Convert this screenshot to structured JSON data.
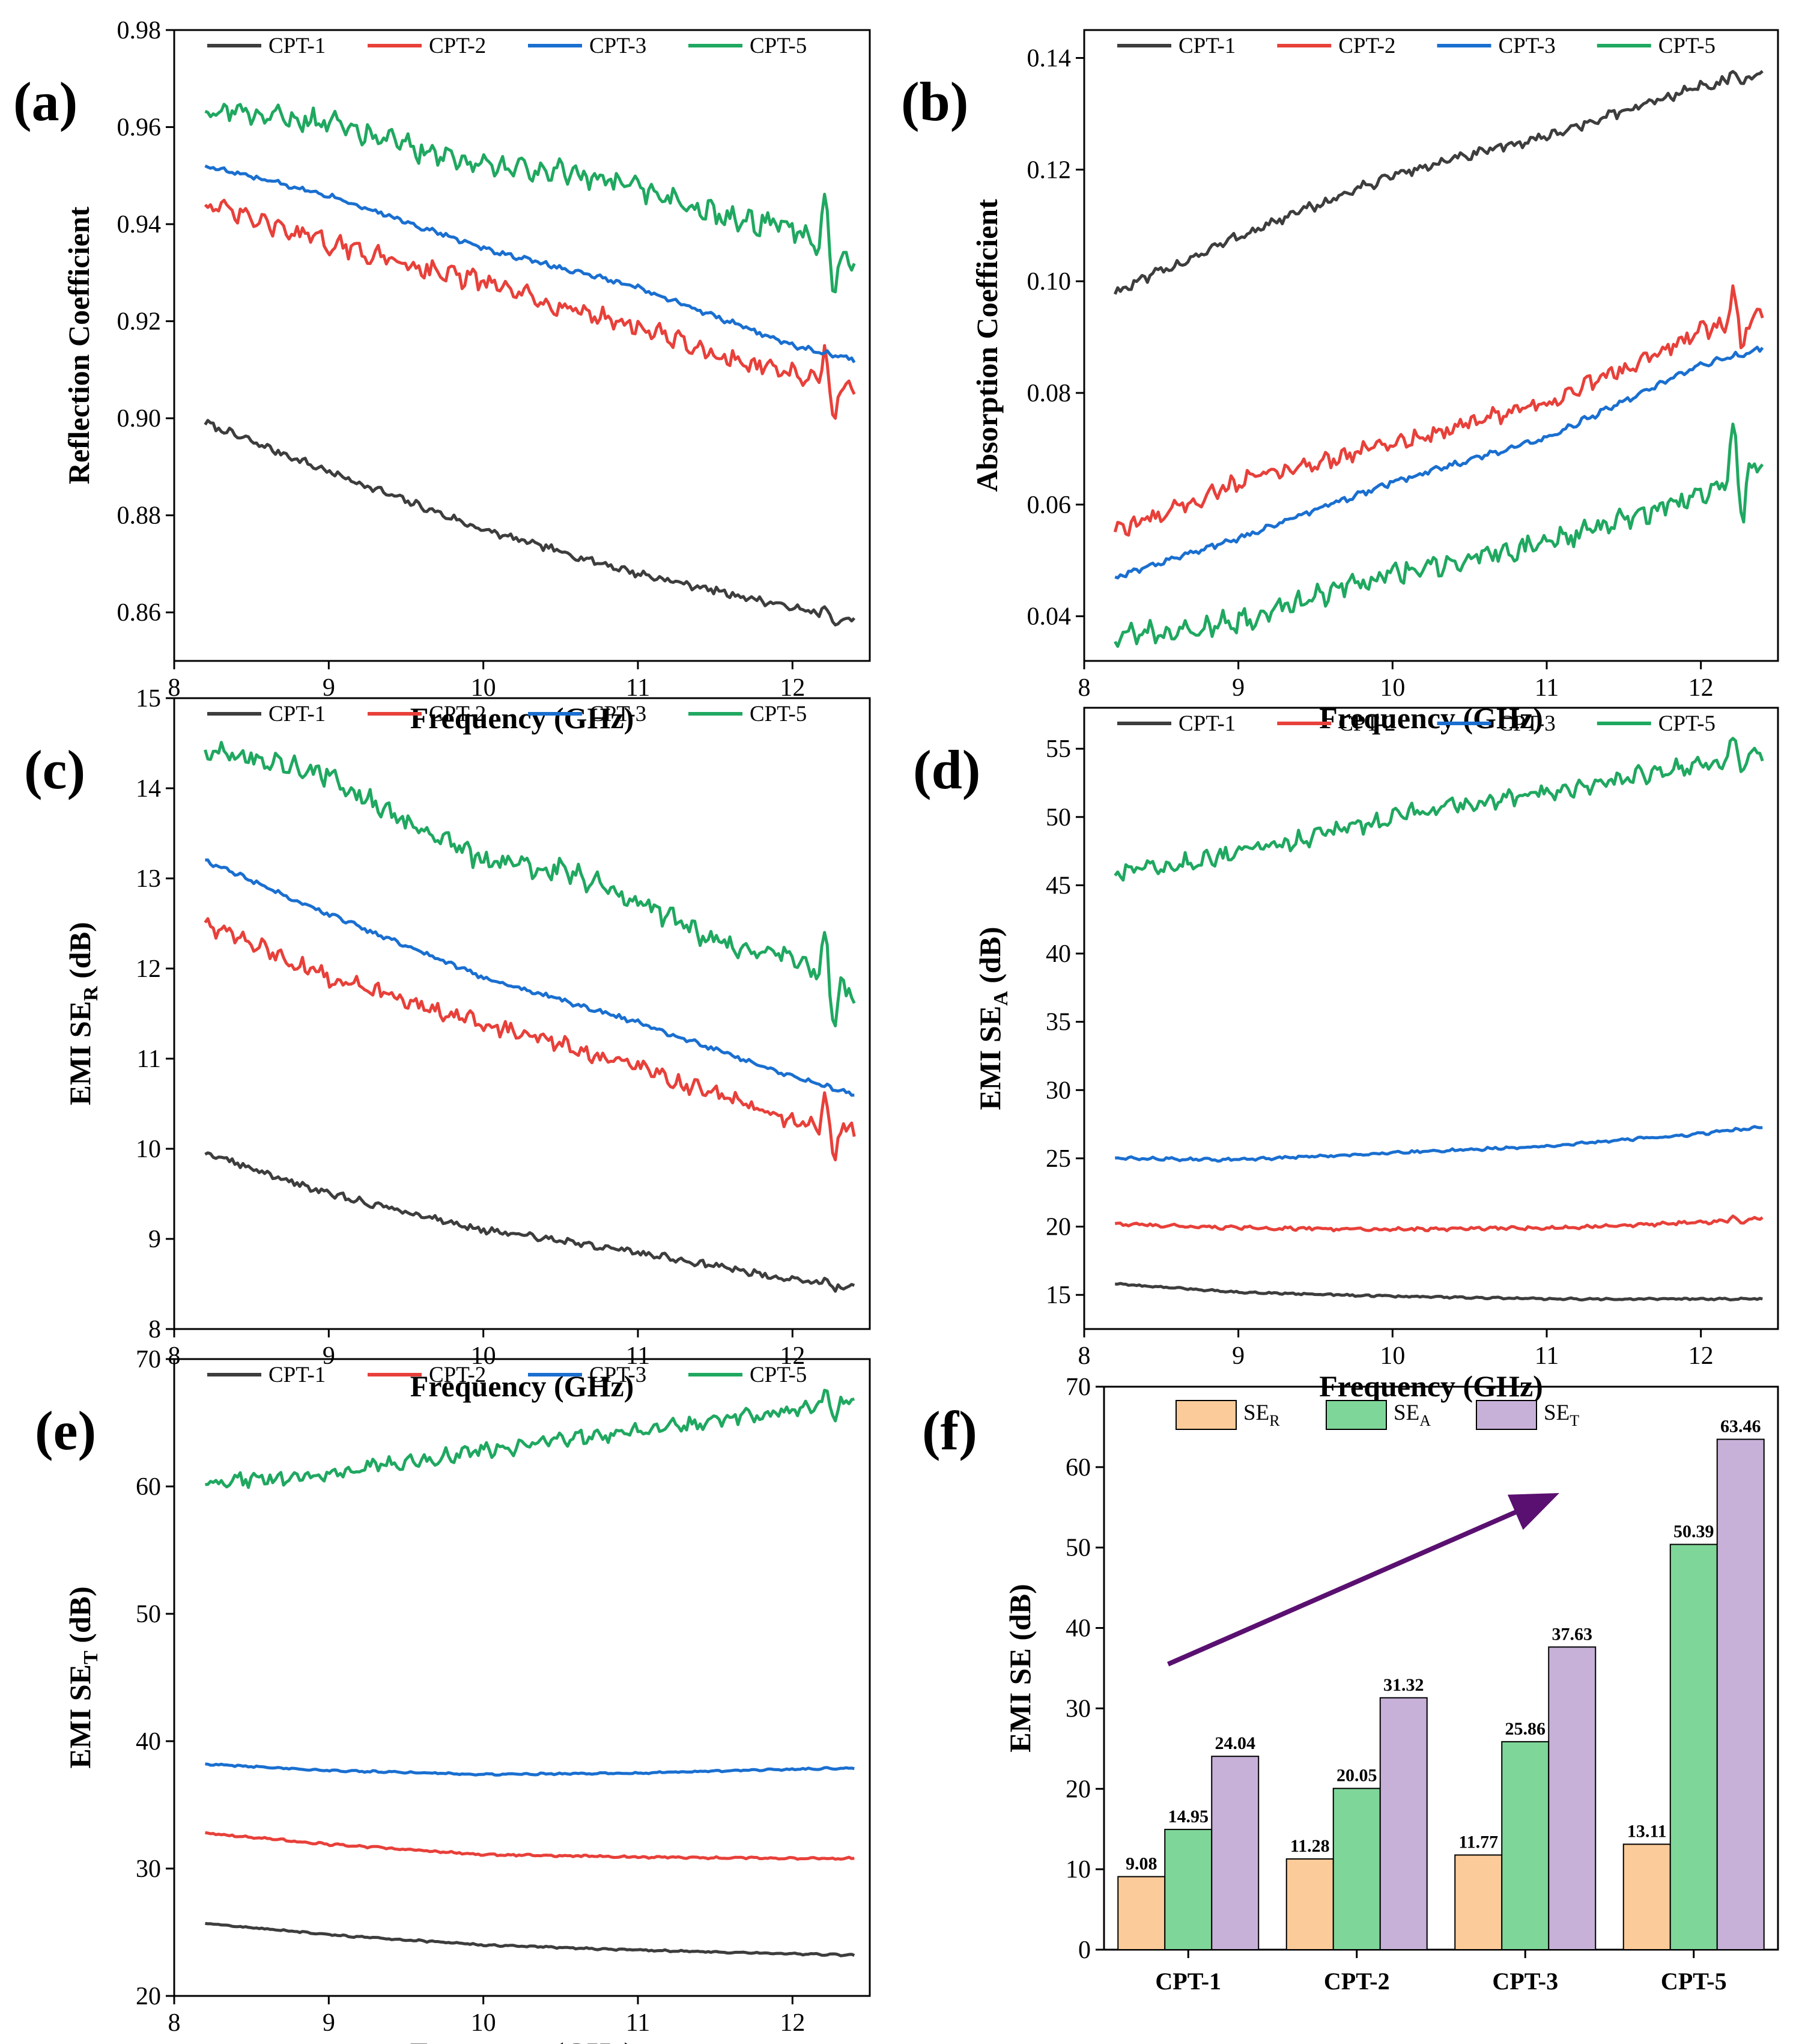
{
  "chart_data": [
    {
      "type": "line",
      "panel": "(a)",
      "xlabel": "Frequency (GHz)",
      "ylabel": "Reflection Coefficient",
      "xlim": [
        8,
        12.5
      ],
      "ylim": [
        0.85,
        0.98
      ],
      "xticks": [
        8,
        9,
        10,
        11,
        12
      ],
      "yticks": [
        0.86,
        0.88,
        0.9,
        0.92,
        0.94,
        0.96,
        0.98
      ],
      "tick_decimals": 2,
      "legend_position": "top",
      "series": [
        {
          "name": "CPT-1",
          "color": "#3d3d3d",
          "noise": 0.0006,
          "spike": 0.002,
          "x": [
            8.2,
            9.0,
            10.0,
            11.0,
            12.0,
            12.4
          ],
          "y": [
            0.899,
            0.889,
            0.877,
            0.868,
            0.861,
            0.858
          ]
        },
        {
          "name": "CPT-2",
          "color": "#e8403a",
          "noise": 0.0015,
          "spike": 0.007,
          "x": [
            8.2,
            9.0,
            10.0,
            10.5,
            11.0,
            11.5,
            12.0,
            12.4
          ],
          "y": [
            0.944,
            0.936,
            0.928,
            0.923,
            0.919,
            0.913,
            0.909,
            0.905
          ]
        },
        {
          "name": "CPT-3",
          "color": "#1a6fd0",
          "noise": 0.0004,
          "spike": 0.0,
          "x": [
            8.2,
            9.0,
            10.0,
            11.0,
            12.0,
            12.4
          ],
          "y": [
            0.952,
            0.946,
            0.935,
            0.927,
            0.915,
            0.912
          ]
        },
        {
          "name": "CPT-5",
          "color": "#1fa860",
          "noise": 0.0018,
          "spike": 0.009,
          "x": [
            8.2,
            9.0,
            9.5,
            10.0,
            10.5,
            11.0,
            11.5,
            12.0,
            12.4
          ],
          "y": [
            0.964,
            0.961,
            0.956,
            0.952,
            0.951,
            0.947,
            0.942,
            0.939,
            0.932
          ]
        }
      ]
    },
    {
      "type": "line",
      "panel": "(b)",
      "xlabel": "Frequency (GHz)",
      "ylabel": "Absorption Coefficient",
      "xlim": [
        8,
        12.5
      ],
      "ylim": [
        0.032,
        0.145
      ],
      "xticks": [
        8,
        9,
        10,
        11,
        12
      ],
      "yticks": [
        0.04,
        0.06,
        0.08,
        0.1,
        0.12,
        0.14
      ],
      "tick_decimals": 2,
      "legend_position": "top",
      "series": [
        {
          "name": "CPT-1",
          "color": "#3d3d3d",
          "noise": 0.0007,
          "spike": 0.002,
          "x": [
            8.2,
            9.0,
            10.0,
            11.0,
            12.0,
            12.4
          ],
          "y": [
            0.098,
            0.108,
            0.119,
            0.126,
            0.135,
            0.137
          ]
        },
        {
          "name": "CPT-2",
          "color": "#e8403a",
          "noise": 0.0012,
          "spike": 0.006,
          "x": [
            8.2,
            9.0,
            10.0,
            11.0,
            12.0,
            12.4
          ],
          "y": [
            0.055,
            0.064,
            0.071,
            0.078,
            0.091,
            0.094
          ]
        },
        {
          "name": "CPT-3",
          "color": "#1a6fd0",
          "noise": 0.0004,
          "spike": 0.0,
          "x": [
            8.2,
            9.0,
            10.0,
            11.0,
            12.0,
            12.4
          ],
          "y": [
            0.047,
            0.054,
            0.064,
            0.072,
            0.085,
            0.088
          ]
        },
        {
          "name": "CPT-5",
          "color": "#1fa860",
          "noise": 0.0016,
          "spike": 0.008,
          "x": [
            8.2,
            9.0,
            10.0,
            11.0,
            12.0,
            12.4
          ],
          "y": [
            0.036,
            0.039,
            0.048,
            0.053,
            0.062,
            0.068
          ]
        }
      ]
    },
    {
      "type": "line",
      "panel": "(c)",
      "xlabel": "Frequency (GHz)",
      "ylabel": "EMI SE",
      "ylabel_sub": "R",
      "ylabel_suffix": " (dB)",
      "xlim": [
        8,
        12.5
      ],
      "ylim": [
        8,
        15
      ],
      "xticks": [
        8,
        9,
        10,
        11,
        12
      ],
      "yticks": [
        8,
        9,
        10,
        11,
        12,
        13,
        14,
        15
      ],
      "tick_decimals": 0,
      "legend_position": "top",
      "series": [
        {
          "name": "CPT-1",
          "color": "#3d3d3d",
          "noise": 0.03,
          "spike": 0.08,
          "x": [
            8.2,
            9.0,
            10.0,
            11.0,
            12.0,
            12.4
          ],
          "y": [
            9.95,
            9.5,
            9.1,
            8.85,
            8.55,
            8.47
          ]
        },
        {
          "name": "CPT-2",
          "color": "#e8403a",
          "noise": 0.07,
          "spike": 0.35,
          "x": [
            8.2,
            9.0,
            10.0,
            11.0,
            12.0,
            12.4
          ],
          "y": [
            12.5,
            11.9,
            11.4,
            10.9,
            10.3,
            10.2
          ]
        },
        {
          "name": "CPT-3",
          "color": "#1a6fd0",
          "noise": 0.02,
          "spike": 0.0,
          "x": [
            8.2,
            9.0,
            10.0,
            11.0,
            12.0,
            12.4
          ],
          "y": [
            13.2,
            12.6,
            11.9,
            11.4,
            10.8,
            10.6
          ]
        },
        {
          "name": "CPT-5",
          "color": "#1fa860",
          "noise": 0.09,
          "spike": 0.45,
          "x": [
            8.2,
            9.0,
            9.5,
            10.0,
            10.5,
            11.0,
            11.5,
            12.0,
            12.4
          ],
          "y": [
            14.45,
            14.15,
            13.6,
            13.2,
            13.1,
            12.75,
            12.3,
            12.1,
            11.7
          ]
        }
      ]
    },
    {
      "type": "line",
      "panel": "(d)",
      "xlabel": "Frequency (GHz)",
      "ylabel": "EMI SE",
      "ylabel_sub": "A",
      "ylabel_suffix": " (dB)",
      "xlim": [
        8,
        12.5
      ],
      "ylim": [
        12.5,
        58
      ],
      "xticks": [
        8,
        9,
        10,
        11,
        12
      ],
      "yticks": [
        15,
        20,
        25,
        30,
        35,
        40,
        45,
        50,
        55
      ],
      "tick_decimals": 0,
      "legend_position": "top",
      "series": [
        {
          "name": "CPT-1",
          "color": "#3d3d3d",
          "noise": 0.05,
          "spike": 0.0,
          "x": [
            8.2,
            9.0,
            10.0,
            11.0,
            12.0,
            12.4
          ],
          "y": [
            15.8,
            15.2,
            14.9,
            14.7,
            14.7,
            14.7
          ]
        },
        {
          "name": "CPT-2",
          "color": "#e8403a",
          "noise": 0.1,
          "spike": 0.3,
          "x": [
            8.2,
            9.0,
            10.0,
            11.0,
            12.0,
            12.4
          ],
          "y": [
            20.2,
            19.9,
            19.8,
            19.9,
            20.3,
            20.6
          ]
        },
        {
          "name": "CPT-3",
          "color": "#1a6fd0",
          "noise": 0.08,
          "spike": 0.0,
          "x": [
            8.2,
            9.0,
            10.0,
            11.0,
            12.0,
            12.4
          ],
          "y": [
            25.0,
            24.9,
            25.4,
            25.9,
            26.8,
            27.3
          ]
        },
        {
          "name": "CPT-5",
          "color": "#1fa860",
          "noise": 0.5,
          "spike": 1.2,
          "x": [
            8.2,
            9.0,
            10.0,
            11.0,
            12.0,
            12.4
          ],
          "y": [
            45.8,
            47.3,
            50.0,
            51.8,
            53.8,
            54.8
          ]
        }
      ]
    },
    {
      "type": "line",
      "panel": "(e)",
      "xlabel": "Frequency (GHz)",
      "ylabel": "EMI SE",
      "ylabel_sub": "T",
      "ylabel_suffix": " (dB)",
      "xlim": [
        8,
        12.5
      ],
      "ylim": [
        20,
        70
      ],
      "xticks": [
        8,
        9,
        10,
        11,
        12
      ],
      "yticks": [
        20,
        30,
        40,
        50,
        60,
        70
      ],
      "tick_decimals": 0,
      "legend_position": "top",
      "series": [
        {
          "name": "CPT-1",
          "color": "#3d3d3d",
          "noise": 0.05,
          "spike": 0.0,
          "x": [
            8.2,
            9.0,
            10.0,
            11.0,
            12.0,
            12.4
          ],
          "y": [
            25.7,
            24.8,
            24.0,
            23.6,
            23.3,
            23.2
          ]
        },
        {
          "name": "CPT-2",
          "color": "#e8403a",
          "noise": 0.06,
          "spike": 0.0,
          "x": [
            8.2,
            9.0,
            10.0,
            11.0,
            12.0,
            12.4
          ],
          "y": [
            32.8,
            31.9,
            31.1,
            30.9,
            30.8,
            30.8
          ]
        },
        {
          "name": "CPT-3",
          "color": "#1a6fd0",
          "noise": 0.05,
          "spike": 0.0,
          "x": [
            8.2,
            9.0,
            10.0,
            11.0,
            12.0,
            12.4
          ],
          "y": [
            38.2,
            37.7,
            37.4,
            37.5,
            37.8,
            37.9
          ]
        },
        {
          "name": "CPT-5",
          "color": "#1fa860",
          "noise": 0.45,
          "spike": 1.0,
          "x": [
            8.2,
            9.0,
            10.0,
            11.0,
            12.0,
            12.4
          ],
          "y": [
            60.2,
            61.0,
            62.8,
            64.4,
            66.0,
            66.8
          ]
        }
      ]
    },
    {
      "type": "bar",
      "panel": "(f)",
      "ylabel": "EMI SE (dB)",
      "ylim": [
        0,
        70
      ],
      "yticks": [
        0,
        10,
        20,
        30,
        40,
        50,
        60,
        70
      ],
      "tick_decimals": 0,
      "categories": [
        "CPT-1",
        "CPT-2",
        "CPT-3",
        "CPT-5"
      ],
      "legend_position": "top",
      "annotation": "arrow indicating increasing trend",
      "series": [
        {
          "name": "SE",
          "sub": "R",
          "color": "#fbcb99",
          "values": [
            9.08,
            11.28,
            11.77,
            13.11
          ],
          "labels": [
            "9.08",
            "11.28",
            "11.77",
            "13.11"
          ]
        },
        {
          "name": "SE",
          "sub": "A",
          "color": "#7fd699",
          "values": [
            14.95,
            20.05,
            25.86,
            50.39
          ],
          "labels": [
            "14.95",
            "20.05",
            "25.86",
            "50.39"
          ]
        },
        {
          "name": "SE",
          "sub": "T",
          "color": "#c7b1d8",
          "values": [
            24.04,
            31.32,
            37.63,
            63.46
          ],
          "labels": [
            "24.04",
            "31.32",
            "37.63",
            "63.46"
          ]
        }
      ],
      "arrow_color": "#5a1070"
    }
  ]
}
